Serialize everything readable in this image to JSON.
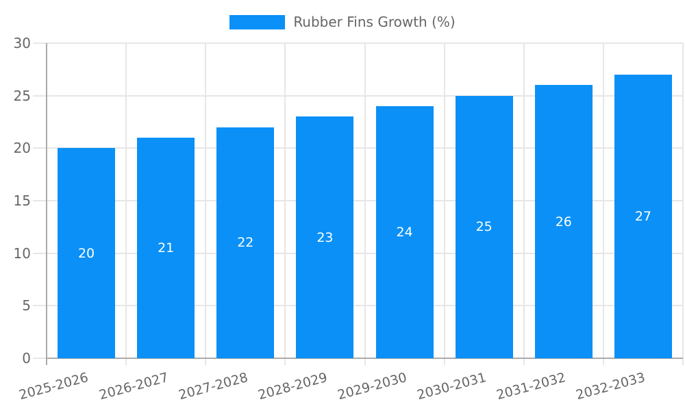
{
  "legend": {
    "label": "Rubber Fins Growth (%)",
    "position": "top"
  },
  "colors": {
    "bar": "#0a90f6",
    "axis": "#aaaaaa",
    "grid": "#e6e6e6",
    "tick_text": "#666666",
    "value_label_text": "#ffffff",
    "background": "#ffffff"
  },
  "chart_data": {
    "type": "bar",
    "title": "",
    "categories": [
      "2025-2026",
      "2026-2027",
      "2027-2028",
      "2028-2029",
      "2029-2030",
      "2030-2031",
      "2031-2032",
      "2032-2033"
    ],
    "values": [
      20,
      21,
      22,
      23,
      24,
      25,
      26,
      27
    ],
    "bar_value_labels": [
      "20",
      "21",
      "22",
      "23",
      "24",
      "25",
      "26",
      "27"
    ],
    "bar_value_label_position": "center-inside",
    "series_name": "Rubber Fins Growth (%)",
    "xlabel": "",
    "ylabel": "",
    "ylim": [
      0,
      30
    ],
    "yticks": [
      0,
      5,
      10,
      15,
      20,
      25,
      30
    ],
    "grid": true,
    "x_tick_rotation_deg": -15,
    "legend_position": "top-center"
  }
}
